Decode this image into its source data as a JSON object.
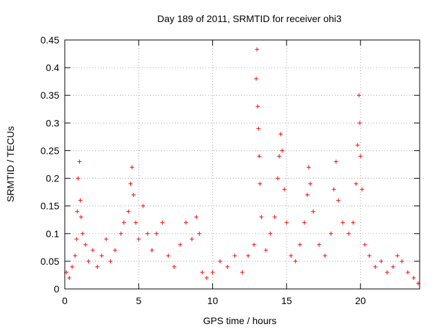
{
  "chart_data": {
    "type": "scatter",
    "title": "Day 189 of 2011, SRMTID for receiver ohi3",
    "xlabel": "GPS time / hours",
    "ylabel": "SRMTID / TECUs",
    "xlim": [
      0,
      24
    ],
    "ylim": [
      0,
      0.45
    ],
    "xticks": [
      0,
      5,
      10,
      15,
      20
    ],
    "yticks": [
      0,
      0.05,
      0.1,
      0.15,
      0.2,
      0.25,
      0.3,
      0.35,
      0.4,
      0.45
    ],
    "grid": true,
    "marker": "+",
    "colors": {
      "series": "#ff0000",
      "grid": "#a0a0a0",
      "axis": "#000000"
    },
    "series": [
      {
        "name": "SRMTID",
        "points": [
          [
            0.1,
            0.03
          ],
          [
            0.3,
            0.02
          ],
          [
            0.5,
            0.04
          ],
          [
            0.7,
            0.06
          ],
          [
            0.8,
            0.09
          ],
          [
            0.85,
            0.14
          ],
          [
            0.9,
            0.2
          ],
          [
            1.0,
            0.23
          ],
          [
            1.05,
            0.16
          ],
          [
            1.1,
            0.13
          ],
          [
            1.2,
            0.1
          ],
          [
            1.4,
            0.08
          ],
          [
            1.6,
            0.05
          ],
          [
            1.9,
            0.07
          ],
          [
            2.2,
            0.04
          ],
          [
            2.5,
            0.06
          ],
          [
            2.8,
            0.09
          ],
          [
            3.1,
            0.05
          ],
          [
            3.4,
            0.07
          ],
          [
            3.8,
            0.1
          ],
          [
            4.0,
            0.12
          ],
          [
            4.3,
            0.14
          ],
          [
            4.45,
            0.19
          ],
          [
            4.55,
            0.22
          ],
          [
            4.65,
            0.17
          ],
          [
            4.8,
            0.12
          ],
          [
            5.0,
            0.09
          ],
          [
            5.3,
            0.15
          ],
          [
            5.6,
            0.1
          ],
          [
            5.9,
            0.07
          ],
          [
            6.2,
            0.1
          ],
          [
            6.6,
            0.12
          ],
          [
            7.0,
            0.06
          ],
          [
            7.4,
            0.04
          ],
          [
            7.8,
            0.08
          ],
          [
            8.2,
            0.12
          ],
          [
            8.6,
            0.09
          ],
          [
            8.9,
            0.13
          ],
          [
            9.1,
            0.1
          ],
          [
            9.3,
            0.03
          ],
          [
            9.6,
            0.02
          ],
          [
            10.0,
            0.03
          ],
          [
            10.5,
            0.05
          ],
          [
            11.0,
            0.04
          ],
          [
            11.5,
            0.06
          ],
          [
            12.0,
            0.03
          ],
          [
            12.4,
            0.06
          ],
          [
            12.8,
            0.08
          ],
          [
            12.95,
            0.38
          ],
          [
            13.0,
            0.433
          ],
          [
            13.05,
            0.33
          ],
          [
            13.1,
            0.29
          ],
          [
            13.15,
            0.24
          ],
          [
            13.2,
            0.19
          ],
          [
            13.3,
            0.13
          ],
          [
            13.6,
            0.07
          ],
          [
            13.9,
            0.1
          ],
          [
            14.2,
            0.13
          ],
          [
            14.4,
            0.2
          ],
          [
            14.5,
            0.24
          ],
          [
            14.6,
            0.28
          ],
          [
            14.7,
            0.25
          ],
          [
            14.85,
            0.18
          ],
          [
            15.0,
            0.12
          ],
          [
            15.3,
            0.06
          ],
          [
            15.6,
            0.05
          ],
          [
            15.9,
            0.08
          ],
          [
            16.2,
            0.12
          ],
          [
            16.4,
            0.17
          ],
          [
            16.5,
            0.22
          ],
          [
            16.6,
            0.19
          ],
          [
            16.8,
            0.14
          ],
          [
            17.2,
            0.08
          ],
          [
            17.6,
            0.06
          ],
          [
            18.0,
            0.1
          ],
          [
            18.2,
            0.18
          ],
          [
            18.35,
            0.23
          ],
          [
            18.5,
            0.16
          ],
          [
            18.8,
            0.12
          ],
          [
            19.2,
            0.1
          ],
          [
            19.5,
            0.12
          ],
          [
            19.7,
            0.19
          ],
          [
            19.8,
            0.26
          ],
          [
            19.9,
            0.35
          ],
          [
            19.95,
            0.3
          ],
          [
            20.0,
            0.24
          ],
          [
            20.1,
            0.18
          ],
          [
            20.3,
            0.08
          ],
          [
            20.6,
            0.06
          ],
          [
            21.0,
            0.04
          ],
          [
            21.4,
            0.05
          ],
          [
            21.8,
            0.03
          ],
          [
            22.2,
            0.04
          ],
          [
            22.5,
            0.06
          ],
          [
            22.8,
            0.05
          ],
          [
            23.2,
            0.03
          ],
          [
            23.6,
            0.02
          ],
          [
            23.9,
            0.01
          ]
        ]
      }
    ]
  }
}
